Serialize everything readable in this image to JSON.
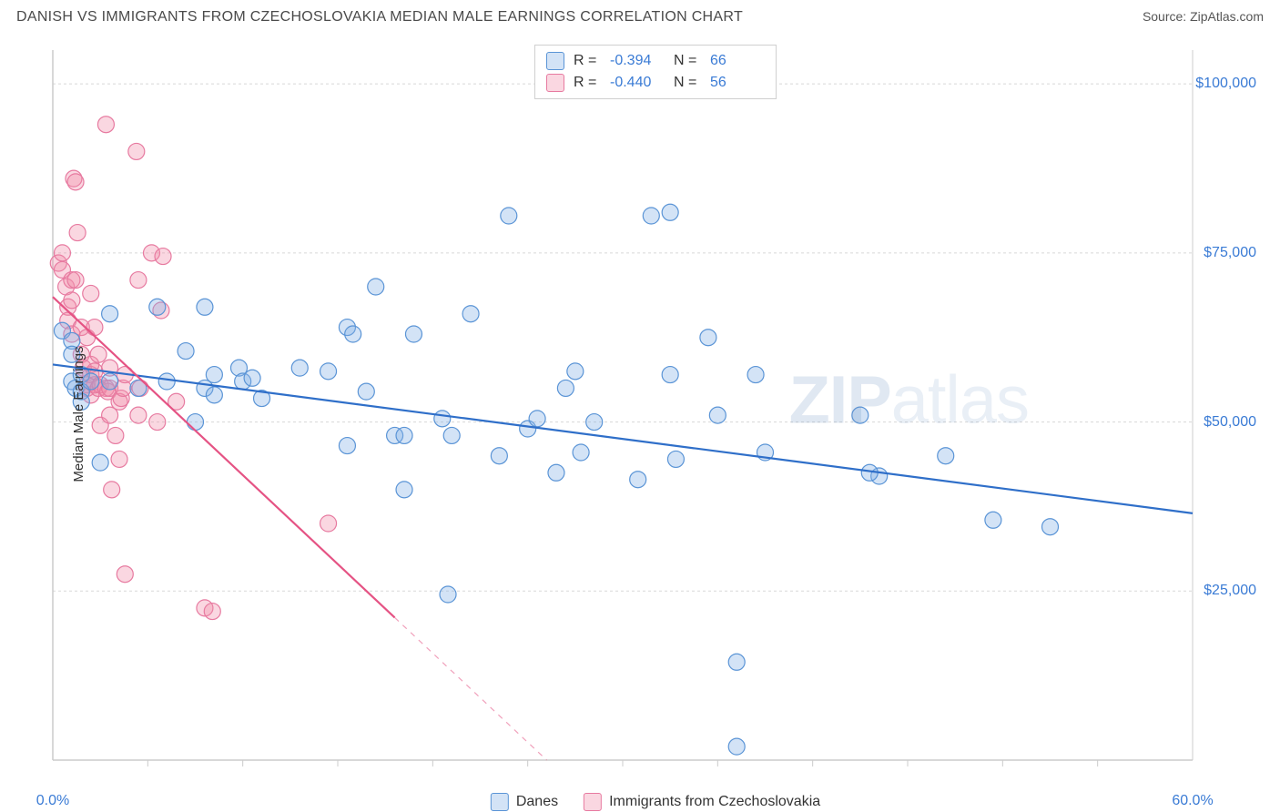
{
  "header": {
    "title": "DANISH VS IMMIGRANTS FROM CZECHOSLOVAKIA MEDIAN MALE EARNINGS CORRELATION CHART",
    "source_prefix": "Source: ",
    "source": "ZipAtlas.com"
  },
  "watermark": {
    "zip": "ZIP",
    "atlas": "atlas"
  },
  "chart": {
    "type": "scatter",
    "ylabel": "Median Male Earnings",
    "xlim": [
      0,
      60
    ],
    "ylim": [
      0,
      105000
    ],
    "yticks": [
      {
        "v": 25000,
        "label": "$25,000"
      },
      {
        "v": 50000,
        "label": "$50,000"
      },
      {
        "v": 75000,
        "label": "$75,000"
      },
      {
        "v": 100000,
        "label": "$100,000"
      }
    ],
    "xticks": [
      {
        "v": 0,
        "label": "0.0%"
      },
      {
        "v": 60,
        "label": "60.0%"
      }
    ],
    "xminor": [
      5,
      10,
      15,
      20,
      25,
      30,
      35,
      40,
      45,
      50,
      55
    ],
    "grid_color": "#d8d8d8",
    "axis_color": "#cccccc",
    "background": "#ffffff",
    "marker_radius": 9,
    "marker_stroke_width": 1.2,
    "series": [
      {
        "id": "danes",
        "label": "Danes",
        "fill": "rgba(130,175,230,0.35)",
        "stroke": "#5a94d6",
        "line_color": "#2f6fc9",
        "line_width": 2.2,
        "R": "-0.394",
        "N": "66",
        "trend": {
          "x1": 0,
          "y1": 58500,
          "x2": 60,
          "y2": 36500
        },
        "points": [
          [
            0.5,
            63500
          ],
          [
            1.0,
            62000
          ],
          [
            1.0,
            60000
          ],
          [
            1.0,
            56000
          ],
          [
            1.2,
            55000
          ],
          [
            1.5,
            54500
          ],
          [
            1.5,
            53000
          ],
          [
            1.5,
            57000
          ],
          [
            2.0,
            56000
          ],
          [
            2.5,
            44000
          ],
          [
            3.0,
            66000
          ],
          [
            3.0,
            56000
          ],
          [
            4.5,
            55000
          ],
          [
            5.5,
            67000
          ],
          [
            6.0,
            56000
          ],
          [
            7.0,
            60500
          ],
          [
            7.5,
            50000
          ],
          [
            8.0,
            55000
          ],
          [
            8.5,
            57000
          ],
          [
            8.0,
            67000
          ],
          [
            8.5,
            54000
          ],
          [
            9.8,
            58000
          ],
          [
            10.0,
            56000
          ],
          [
            10.5,
            56500
          ],
          [
            11.0,
            53500
          ],
          [
            13.0,
            58000
          ],
          [
            14.5,
            57500
          ],
          [
            15.5,
            46500
          ],
          [
            15.5,
            64000
          ],
          [
            15.8,
            63000
          ],
          [
            16.5,
            54500
          ],
          [
            17.0,
            70000
          ],
          [
            18.0,
            48000
          ],
          [
            18.5,
            48000
          ],
          [
            18.5,
            40000
          ],
          [
            19.0,
            63000
          ],
          [
            20.5,
            50500
          ],
          [
            21.0,
            48000
          ],
          [
            20.8,
            24500
          ],
          [
            22.0,
            66000
          ],
          [
            23.5,
            45000
          ],
          [
            24.0,
            80500
          ],
          [
            25.0,
            49000
          ],
          [
            25.5,
            50500
          ],
          [
            26.5,
            42500
          ],
          [
            27.0,
            55000
          ],
          [
            27.5,
            57500
          ],
          [
            27.8,
            45500
          ],
          [
            28.5,
            50000
          ],
          [
            30.8,
            41500
          ],
          [
            31.5,
            80500
          ],
          [
            32.5,
            57000
          ],
          [
            32.5,
            81000
          ],
          [
            32.8,
            44500
          ],
          [
            34.5,
            62500
          ],
          [
            35.0,
            51000
          ],
          [
            36.0,
            14500
          ],
          [
            37.0,
            57000
          ],
          [
            37.5,
            45500
          ],
          [
            36.0,
            2000
          ],
          [
            42.5,
            51000
          ],
          [
            43.5,
            42000
          ],
          [
            47.0,
            45000
          ],
          [
            49.5,
            35500
          ],
          [
            52.5,
            34500
          ],
          [
            43.0,
            42500
          ]
        ]
      },
      {
        "id": "czech",
        "label": "Immigrants from Czechoslovakia",
        "fill": "rgba(240,140,170,0.35)",
        "stroke": "#e77aa0",
        "line_color": "#e55384",
        "line_width": 2.2,
        "R": "-0.440",
        "N": "56",
        "trend": {
          "x1": 0,
          "y1": 68500,
          "x2": 26,
          "y2": 0
        },
        "trend_dash_after_x": 18,
        "points": [
          [
            0.3,
            73500
          ],
          [
            0.5,
            72500
          ],
          [
            0.5,
            75000
          ],
          [
            0.7,
            70000
          ],
          [
            0.8,
            67000
          ],
          [
            0.8,
            65000
          ],
          [
            1.0,
            63000
          ],
          [
            1.0,
            71000
          ],
          [
            1.0,
            68000
          ],
          [
            1.1,
            86000
          ],
          [
            1.2,
            85500
          ],
          [
            1.2,
            71000
          ],
          [
            1.3,
            78000
          ],
          [
            1.5,
            60000
          ],
          [
            1.5,
            64000
          ],
          [
            1.6,
            58000
          ],
          [
            1.8,
            62500
          ],
          [
            1.8,
            55500
          ],
          [
            1.8,
            55000
          ],
          [
            2.0,
            58500
          ],
          [
            2.0,
            54000
          ],
          [
            2.0,
            69000
          ],
          [
            2.0,
            57000
          ],
          [
            2.2,
            64000
          ],
          [
            2.2,
            55500
          ],
          [
            2.2,
            57500
          ],
          [
            2.4,
            60000
          ],
          [
            2.4,
            55000
          ],
          [
            2.5,
            49500
          ],
          [
            2.5,
            55500
          ],
          [
            2.8,
            94000
          ],
          [
            2.8,
            55000
          ],
          [
            2.9,
            54500
          ],
          [
            3.0,
            55000
          ],
          [
            3.0,
            51000
          ],
          [
            3.0,
            58000
          ],
          [
            3.1,
            40000
          ],
          [
            3.3,
            48000
          ],
          [
            3.5,
            53000
          ],
          [
            3.5,
            44500
          ],
          [
            3.6,
            53500
          ],
          [
            3.7,
            55000
          ],
          [
            3.8,
            57000
          ],
          [
            3.8,
            27500
          ],
          [
            4.4,
            90000
          ],
          [
            4.5,
            71000
          ],
          [
            4.5,
            51000
          ],
          [
            4.6,
            55000
          ],
          [
            5.2,
            75000
          ],
          [
            5.5,
            50000
          ],
          [
            5.7,
            66500
          ],
          [
            5.8,
            74500
          ],
          [
            6.5,
            53000
          ],
          [
            8.0,
            22500
          ],
          [
            8.4,
            22000
          ],
          [
            14.5,
            35000
          ]
        ]
      }
    ],
    "legend_top": {
      "r_label": "R =",
      "n_label": "N ="
    }
  }
}
